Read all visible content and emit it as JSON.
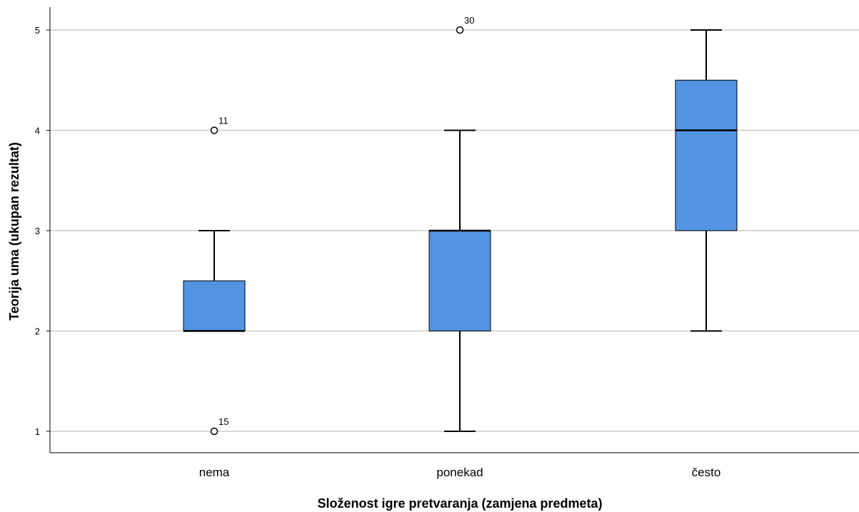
{
  "chart_data": {
    "type": "boxplot",
    "xlabel": "Složenost igre pretvaranja (zamjena predmeta)",
    "ylabel": "Teorija uma (ukupan rezultat)",
    "ylim": [
      0.8,
      5.2
    ],
    "yticks": [
      "1",
      "2",
      "3",
      "4",
      "5"
    ],
    "grid": "horizontal",
    "colors": {
      "box_fill": "#5294e2",
      "outline": "#000000",
      "grid": "#cccccc"
    },
    "categories": [
      "nema",
      "ponekad",
      "često"
    ],
    "boxes": [
      {
        "category": "nema",
        "whisker_low": 2,
        "q1": 2,
        "median": 2,
        "q3": 2.5,
        "whisker_high": 3,
        "outliers": [
          {
            "value": 4,
            "label": "11"
          },
          {
            "value": 1,
            "label": "15"
          }
        ]
      },
      {
        "category": "ponekad",
        "whisker_low": 1,
        "q1": 2,
        "median": 3,
        "q3": 3,
        "whisker_high": 4,
        "outliers": [
          {
            "value": 5,
            "label": "30"
          }
        ]
      },
      {
        "category": "često",
        "whisker_low": 2,
        "q1": 3,
        "median": 4,
        "q3": 4.5,
        "whisker_high": 5,
        "outliers": []
      }
    ]
  }
}
